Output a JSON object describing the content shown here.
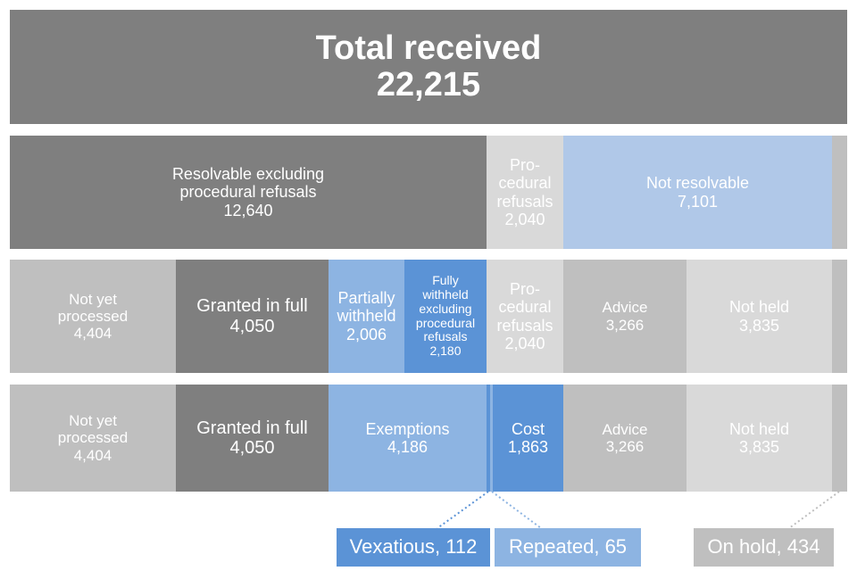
{
  "total": {
    "label": "Total received",
    "value": "22,215"
  },
  "row1": {
    "resolvable": {
      "label": "Resolvable excluding procedural refusals",
      "value": "12,640"
    },
    "procedural": {
      "label": "Pro-cedural refusals",
      "value": "2,040"
    },
    "not_resolvable": {
      "label": "Not resolvable",
      "value": "7,101"
    }
  },
  "row2": {
    "not_yet": {
      "label": "Not yet processed",
      "value": "4,404"
    },
    "granted": {
      "label": "Granted in full",
      "value": "4,050"
    },
    "partial": {
      "label": "Partially withheld",
      "value": "2,006"
    },
    "fully": {
      "label": "Fully withheld excluding procedural refusals",
      "value": "2,180"
    },
    "procedural": {
      "label": "Pro-cedural refusals",
      "value": "2,040"
    },
    "advice": {
      "label": "Advice",
      "value": "3,266"
    },
    "not_held": {
      "label": "Not held",
      "value": "3,835"
    }
  },
  "row3": {
    "not_yet": {
      "label": "Not yet processed",
      "value": "4,404"
    },
    "granted": {
      "label": "Granted in full",
      "value": "4,050"
    },
    "exemptions": {
      "label": "Exemptions",
      "value": "4,186"
    },
    "cost": {
      "label": "Cost",
      "value": "1,863"
    },
    "advice": {
      "label": "Advice",
      "value": "3,266"
    },
    "not_held": {
      "label": "Not held",
      "value": "3,835"
    }
  },
  "callouts": {
    "vexatious": "Vexatious, 112",
    "repeated": "Repeated, 65",
    "on_hold": "On hold, 434"
  },
  "colors": {
    "dark_grey": "#7f7f7f",
    "mid_grey": "#bfbfbf",
    "light_grey": "#d9d9d9",
    "pale_blue": "#b0c8e8",
    "light_blue": "#8db4e2",
    "blue": "#5b93d6"
  }
}
